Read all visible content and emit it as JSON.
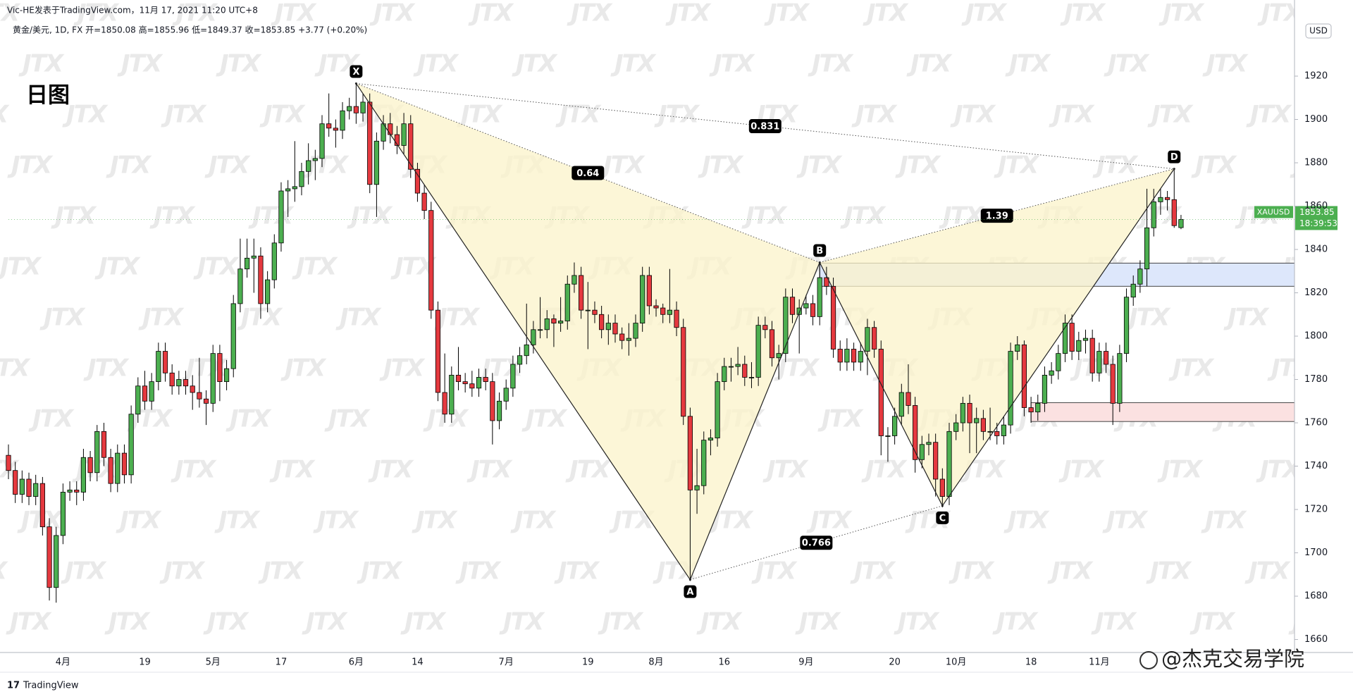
{
  "chart_data": {
    "type": "candlestick",
    "publisher": "Vic-HE发表于TradingView.com，11月 17, 2021 11:20 UTC+8",
    "legend": "黄金/美元, 1D, FX  开=1850.08 高=1855.96 低=1849.37 收=1853.85 +3.77 (+0.20%)",
    "title": "日图",
    "watermark": "JTX",
    "credit": "@杰克交易学院",
    "brand": "TradingView",
    "currency": "USD",
    "symbol": "XAUUSD",
    "last_price": 1853.85,
    "countdown": "18:39:53",
    "up_color": "#4caf50",
    "down_color": "#e5393f",
    "grid": false,
    "ylim": [
      1654,
      1947
    ],
    "yticks": [
      1660,
      1680,
      1700,
      1720,
      1740,
      1760,
      1780,
      1800,
      1820,
      1840,
      1860,
      1880,
      1900,
      1920
    ],
    "categories": [
      null,
      null,
      null,
      null,
      null,
      null,
      null,
      null,
      "4月",
      null,
      null,
      null,
      null,
      null,
      null,
      null,
      null,
      null,
      null,
      null,
      "19",
      null,
      null,
      null,
      null,
      null,
      null,
      null,
      null,
      null,
      "5月",
      null,
      null,
      null,
      null,
      null,
      null,
      null,
      null,
      null,
      "17",
      null,
      null,
      null,
      null,
      null,
      null,
      null,
      null,
      null,
      null,
      "6月",
      null,
      null,
      null,
      null,
      null,
      null,
      null,
      null,
      "14",
      null,
      null,
      null,
      null,
      null,
      null,
      null,
      null,
      null,
      null,
      null,
      null,
      "7月",
      null,
      null,
      null,
      null,
      null,
      null,
      null,
      null,
      null,
      null,
      null,
      "19",
      null,
      null,
      null,
      null,
      null,
      null,
      null,
      null,
      null,
      "8月",
      null,
      null,
      null,
      null,
      null,
      null,
      null,
      null,
      null,
      "16",
      null,
      null,
      null,
      null,
      null,
      null,
      null,
      null,
      null,
      null,
      null,
      "9月",
      null,
      null,
      null,
      null,
      null,
      null,
      null,
      null,
      null,
      null,
      null,
      null,
      "20",
      null,
      null,
      null,
      null,
      null,
      null,
      null,
      null,
      "10月",
      null,
      null,
      null,
      null,
      null,
      null,
      null,
      null,
      null,
      null,
      "18",
      null,
      null,
      null,
      null,
      null,
      null,
      null,
      null,
      null,
      "11月",
      null,
      null,
      null,
      null,
      null,
      null,
      null,
      null,
      null,
      null,
      null,
      null
    ],
    "candles": [
      [
        1745,
        1750,
        1734,
        1738
      ],
      [
        1738,
        1742,
        1723,
        1727
      ],
      [
        1727,
        1738,
        1723,
        1734
      ],
      [
        1734,
        1737,
        1722,
        1726
      ],
      [
        1726,
        1736,
        1722,
        1732
      ],
      [
        1732,
        1735,
        1708,
        1712
      ],
      [
        1712,
        1716,
        1678,
        1684
      ],
      [
        1684,
        1712,
        1677,
        1708
      ],
      [
        1708,
        1732,
        1704,
        1728
      ],
      [
        1728,
        1733,
        1724,
        1729
      ],
      [
        1729,
        1733,
        1722,
        1728
      ],
      [
        1728,
        1748,
        1724,
        1744
      ],
      [
        1744,
        1747,
        1733,
        1737
      ],
      [
        1737,
        1759,
        1733,
        1756
      ],
      [
        1756,
        1760,
        1740,
        1744
      ],
      [
        1744,
        1748,
        1728,
        1732
      ],
      [
        1732,
        1750,
        1728,
        1746
      ],
      [
        1746,
        1750,
        1732,
        1736
      ],
      [
        1736,
        1768,
        1732,
        1764
      ],
      [
        1764,
        1781,
        1760,
        1777
      ],
      [
        1777,
        1784,
        1766,
        1770
      ],
      [
        1770,
        1783,
        1766,
        1779
      ],
      [
        1779,
        1797,
        1775,
        1793
      ],
      [
        1793,
        1797,
        1779,
        1783
      ],
      [
        1783,
        1787,
        1773,
        1777
      ],
      [
        1777,
        1784,
        1773,
        1780
      ],
      [
        1780,
        1784,
        1773,
        1777
      ],
      [
        1777,
        1782,
        1766,
        1774
      ],
      [
        1774,
        1790,
        1767,
        1771
      ],
      [
        1771,
        1775,
        1759,
        1769
      ],
      [
        1769,
        1796,
        1765,
        1792
      ],
      [
        1792,
        1796,
        1770,
        1779
      ],
      [
        1779,
        1789,
        1775,
        1785
      ],
      [
        1785,
        1819,
        1781,
        1815
      ],
      [
        1815,
        1845,
        1811,
        1831
      ],
      [
        1831,
        1845,
        1827,
        1836
      ],
      [
        1836,
        1845,
        1820,
        1837
      ],
      [
        1837,
        1841,
        1808,
        1815
      ],
      [
        1815,
        1830,
        1811,
        1826
      ],
      [
        1826,
        1847,
        1822,
        1843
      ],
      [
        1843,
        1871,
        1839,
        1867
      ],
      [
        1867,
        1872,
        1855,
        1868
      ],
      [
        1868,
        1890,
        1862,
        1869
      ],
      [
        1869,
        1880,
        1865,
        1876
      ],
      [
        1876,
        1889,
        1870,
        1881
      ],
      [
        1881,
        1886,
        1872,
        1882
      ],
      [
        1882,
        1902,
        1878,
        1898
      ],
      [
        1898,
        1912,
        1892,
        1896
      ],
      [
        1896,
        1900,
        1887,
        1895
      ],
      [
        1895,
        1908,
        1891,
        1904
      ],
      [
        1904,
        1910,
        1900,
        1906
      ],
      [
        1906,
        1917,
        1898,
        1903
      ],
      [
        1903,
        1912,
        1899,
        1908
      ],
      [
        1908,
        1912,
        1866,
        1870
      ],
      [
        1870,
        1894,
        1855,
        1890
      ],
      [
        1890,
        1902,
        1886,
        1898
      ],
      [
        1898,
        1903,
        1889,
        1893
      ],
      [
        1893,
        1897,
        1884,
        1888
      ],
      [
        1888,
        1903,
        1884,
        1898
      ],
      [
        1898,
        1902,
        1873,
        1877
      ],
      [
        1877,
        1880,
        1862,
        1866
      ],
      [
        1866,
        1870,
        1854,
        1858
      ],
      [
        1858,
        1862,
        1808,
        1812
      ],
      [
        1812,
        1816,
        1770,
        1774
      ],
      [
        1774,
        1792,
        1760,
        1764
      ],
      [
        1764,
        1786,
        1760,
        1782
      ],
      [
        1782,
        1795,
        1775,
        1779
      ],
      [
        1779,
        1783,
        1774,
        1778
      ],
      [
        1778,
        1784,
        1772,
        1776
      ],
      [
        1776,
        1785,
        1772,
        1781
      ],
      [
        1781,
        1785,
        1775,
        1779
      ],
      [
        1779,
        1783,
        1750,
        1761
      ],
      [
        1761,
        1774,
        1757,
        1770
      ],
      [
        1770,
        1780,
        1766,
        1776
      ],
      [
        1776,
        1791,
        1772,
        1787
      ],
      [
        1787,
        1795,
        1783,
        1791
      ],
      [
        1791,
        1815,
        1787,
        1796
      ],
      [
        1796,
        1807,
        1792,
        1803
      ],
      [
        1803,
        1818,
        1799,
        1803
      ],
      [
        1803,
        1812,
        1799,
        1808
      ],
      [
        1808,
        1810,
        1795,
        1806
      ],
      [
        1806,
        1818,
        1802,
        1807
      ],
      [
        1807,
        1828,
        1803,
        1824
      ],
      [
        1824,
        1834,
        1820,
        1828
      ],
      [
        1828,
        1832,
        1808,
        1812
      ],
      [
        1812,
        1825,
        1794,
        1812
      ],
      [
        1812,
        1816,
        1806,
        1810
      ],
      [
        1810,
        1814,
        1799,
        1803
      ],
      [
        1803,
        1810,
        1796,
        1806
      ],
      [
        1806,
        1810,
        1797,
        1801
      ],
      [
        1801,
        1804,
        1794,
        1798
      ],
      [
        1798,
        1806,
        1791,
        1799
      ],
      [
        1799,
        1810,
        1795,
        1806
      ],
      [
        1806,
        1832,
        1802,
        1828
      ],
      [
        1828,
        1832,
        1810,
        1814
      ],
      [
        1814,
        1817,
        1809,
        1813
      ],
      [
        1813,
        1815,
        1806,
        1810
      ],
      [
        1810,
        1831,
        1806,
        1812
      ],
      [
        1812,
        1816,
        1800,
        1804
      ],
      [
        1804,
        1808,
        1759,
        1763
      ],
      [
        1763,
        1767,
        1687,
        1729
      ],
      [
        1729,
        1748,
        1718,
        1731
      ],
      [
        1731,
        1756,
        1727,
        1752
      ],
      [
        1752,
        1757,
        1745,
        1753
      ],
      [
        1753,
        1783,
        1749,
        1779
      ],
      [
        1779,
        1790,
        1775,
        1786
      ],
      [
        1786,
        1790,
        1779,
        1786
      ],
      [
        1786,
        1795,
        1782,
        1787
      ],
      [
        1787,
        1791,
        1777,
        1781
      ],
      [
        1781,
        1788,
        1776,
        1781
      ],
      [
        1781,
        1809,
        1777,
        1805
      ],
      [
        1805,
        1809,
        1799,
        1803
      ],
      [
        1803,
        1807,
        1786,
        1790
      ],
      [
        1790,
        1796,
        1780,
        1792
      ],
      [
        1792,
        1822,
        1788,
        1818
      ],
      [
        1818,
        1822,
        1806,
        1810
      ],
      [
        1810,
        1817,
        1792,
        1813
      ],
      [
        1813,
        1819,
        1810,
        1815
      ],
      [
        1815,
        1819,
        1805,
        1809
      ],
      [
        1809,
        1834,
        1805,
        1827
      ],
      [
        1827,
        1832,
        1819,
        1823
      ],
      [
        1823,
        1827,
        1790,
        1794
      ],
      [
        1794,
        1798,
        1784,
        1788
      ],
      [
        1788,
        1799,
        1784,
        1794
      ],
      [
        1794,
        1797,
        1784,
        1788
      ],
      [
        1788,
        1797,
        1784,
        1793
      ],
      [
        1793,
        1808,
        1782,
        1804
      ],
      [
        1804,
        1807,
        1790,
        1794
      ],
      [
        1794,
        1798,
        1745,
        1754
      ],
      [
        1754,
        1758,
        1742,
        1754
      ],
      [
        1754,
        1767,
        1750,
        1763
      ],
      [
        1763,
        1778,
        1759,
        1774
      ],
      [
        1774,
        1787,
        1764,
        1768
      ],
      [
        1768,
        1772,
        1737,
        1743
      ],
      [
        1743,
        1754,
        1739,
        1750
      ],
      [
        1750,
        1755,
        1745,
        1751
      ],
      [
        1751,
        1755,
        1726,
        1734
      ],
      [
        1734,
        1739,
        1721,
        1726
      ],
      [
        1726,
        1760,
        1722,
        1756
      ],
      [
        1756,
        1764,
        1752,
        1760
      ],
      [
        1760,
        1772,
        1756,
        1769
      ],
      [
        1769,
        1773,
        1746,
        1760
      ],
      [
        1760,
        1767,
        1746,
        1762
      ],
      [
        1762,
        1766,
        1752,
        1756
      ],
      [
        1756,
        1767,
        1752,
        1756
      ],
      [
        1756,
        1760,
        1750,
        1754
      ],
      [
        1754,
        1763,
        1750,
        1759
      ],
      [
        1759,
        1797,
        1755,
        1793
      ],
      [
        1793,
        1800,
        1789,
        1796
      ],
      [
        1796,
        1798,
        1763,
        1767
      ],
      [
        1767,
        1772,
        1760,
        1765
      ],
      [
        1765,
        1773,
        1761,
        1769
      ],
      [
        1769,
        1786,
        1765,
        1782
      ],
      [
        1782,
        1788,
        1778,
        1784
      ],
      [
        1784,
        1796,
        1780,
        1792
      ],
      [
        1792,
        1810,
        1788,
        1806
      ],
      [
        1806,
        1810,
        1789,
        1793
      ],
      [
        1793,
        1802,
        1789,
        1798
      ],
      [
        1798,
        1803,
        1792,
        1799
      ],
      [
        1799,
        1803,
        1779,
        1783
      ],
      [
        1783,
        1797,
        1779,
        1793
      ],
      [
        1793,
        1797,
        1783,
        1787
      ],
      [
        1787,
        1791,
        1759,
        1769
      ],
      [
        1769,
        1796,
        1765,
        1792
      ],
      [
        1792,
        1822,
        1788,
        1818
      ],
      [
        1818,
        1828,
        1814,
        1824
      ],
      [
        1824,
        1835,
        1820,
        1831
      ],
      [
        1831,
        1868,
        1823,
        1850
      ],
      [
        1850,
        1868,
        1846,
        1862
      ],
      [
        1862,
        1868,
        1856,
        1864
      ],
      [
        1864,
        1867,
        1858,
        1863
      ],
      [
        1863,
        1877,
        1850,
        1851
      ],
      [
        1850.08,
        1855.96,
        1849.37,
        1853.85
      ]
    ],
    "pattern": {
      "color": "#fbf3c9",
      "points": [
        {
          "label": "X",
          "x": 51,
          "value": 1916.6
        },
        {
          "label": "A",
          "x": 100,
          "value": 1687.6
        },
        {
          "label": "B",
          "x": 119,
          "value": 1834
        },
        {
          "label": "C",
          "x": 137,
          "value": 1721.7
        },
        {
          "label": "D",
          "x": 171,
          "value": 1877.2
        }
      ],
      "ratios": [
        0.831,
        0.64,
        1.39,
        0.766
      ]
    },
    "zones": [
      {
        "x": 119,
        "ylim": [
          1823,
          1833.7
        ],
        "color": "#dde7fb"
      },
      {
        "x": 150,
        "ylim": [
          1760.6,
          1769.3
        ],
        "color": "#fbe1e1"
      }
    ]
  }
}
